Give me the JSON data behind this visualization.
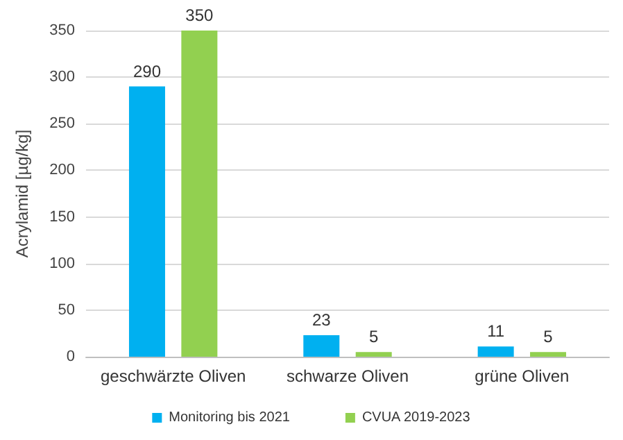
{
  "chart_data": {
    "type": "bar",
    "ylabel": "Acrylamid [µg/kg]",
    "categories": [
      "geschwärzte Oliven",
      "schwarze Oliven",
      "grüne Oliven"
    ],
    "series": [
      {
        "name": "Monitoring bis 2021",
        "color": "#00b0f0",
        "values": [
          290,
          23,
          11
        ]
      },
      {
        "name": "CVUA 2019-2023",
        "color": "#92d050",
        "values": [
          350,
          5,
          5
        ]
      }
    ],
    "ylim": [
      0,
      350
    ],
    "yticks": [
      0,
      50,
      100,
      150,
      200,
      250,
      300,
      350
    ],
    "grid": "y",
    "legend": "bottom",
    "data_labels": true
  }
}
